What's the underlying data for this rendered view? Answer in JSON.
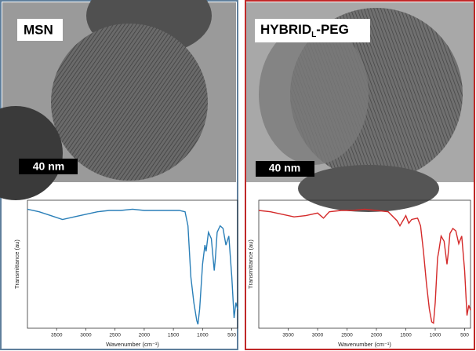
{
  "images": [
    {
      "label": "MSN",
      "scale_bar": "40 nm"
    },
    {
      "label": "HYBRID",
      "label_subscript": "L",
      "label_suffix": "-PEG",
      "scale_bar": "40 nm"
    }
  ],
  "chart_data": [
    {
      "type": "line",
      "xlabel": "Wavenumber (cm⁻¹)",
      "ylabel": "Transmittance (au)",
      "color": "#2a7fb8",
      "xlim": [
        4000,
        400
      ],
      "ylim": [
        0,
        100
      ],
      "xticks": [
        3500,
        3000,
        2500,
        2000,
        1500,
        1000,
        500
      ],
      "x": [
        4000,
        3800,
        3600,
        3400,
        3200,
        3000,
        2800,
        2600,
        2400,
        2200,
        2000,
        1800,
        1600,
        1400,
        1300,
        1250,
        1220,
        1200,
        1150,
        1100,
        1080,
        1050,
        1000,
        960,
        940,
        900,
        850,
        800,
        780,
        750,
        700,
        650,
        600,
        550,
        500,
        460,
        430,
        400
      ],
      "values": [
        93,
        91,
        88,
        85,
        87,
        89,
        91,
        92,
        92,
        93,
        92,
        92,
        92,
        92,
        91,
        80,
        55,
        40,
        20,
        6,
        3,
        15,
        50,
        65,
        60,
        75,
        70,
        45,
        55,
        75,
        80,
        78,
        65,
        72,
        40,
        8,
        20,
        15
      ]
    },
    {
      "type": "line",
      "xlabel": "Wavenumber (cm⁻¹)",
      "ylabel": "Transmittance (au)",
      "color": "#d42a2a",
      "xlim": [
        4000,
        400
      ],
      "ylim": [
        0,
        100
      ],
      "xticks": [
        3500,
        3000,
        2500,
        2000,
        1500,
        1000,
        500
      ],
      "x": [
        4000,
        3800,
        3600,
        3400,
        3200,
        3000,
        2900,
        2800,
        2600,
        2400,
        2200,
        2000,
        1800,
        1650,
        1600,
        1500,
        1450,
        1400,
        1300,
        1250,
        1200,
        1150,
        1100,
        1060,
        1030,
        1000,
        960,
        940,
        900,
        850,
        800,
        780,
        750,
        700,
        650,
        600,
        550,
        500,
        460,
        430,
        400
      ],
      "values": [
        92,
        91,
        89,
        87,
        88,
        90,
        86,
        91,
        92,
        92,
        93,
        92,
        91,
        84,
        80,
        88,
        82,
        85,
        86,
        80,
        60,
        35,
        15,
        5,
        4,
        20,
        55,
        60,
        72,
        68,
        50,
        58,
        74,
        78,
        76,
        66,
        72,
        45,
        10,
        18,
        14
      ]
    }
  ]
}
